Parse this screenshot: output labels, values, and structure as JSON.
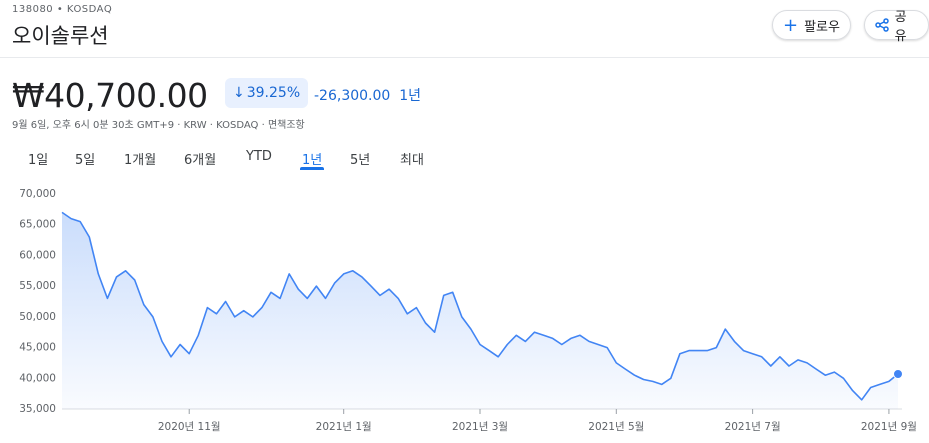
{
  "header": {
    "ticker": "138080 • KOSDAQ",
    "name": "오이솔루션",
    "price": "₩40,700.00",
    "change_percent": "39.25%",
    "change": "-26,300.00",
    "change_period": "1년",
    "meta": "9월 6일, 오후 6시 0분 30초 GMT+9 · KRW · KOSDAQ · 면책조항"
  },
  "buttons": {
    "follow": "팔로우",
    "share": "공유"
  },
  "tabs": {
    "items": [
      "1일",
      "5일",
      "1개월",
      "6개월",
      "YTD",
      "1년",
      "5년",
      "최대"
    ],
    "active": 5
  },
  "chart_data": {
    "type": "line",
    "color": "#4285f4",
    "categories": [
      null,
      null,
      null,
      null,
      null,
      null,
      null,
      null,
      null,
      null,
      null,
      null,
      null,
      null,
      "2020년 11월",
      null,
      null,
      null,
      null,
      null,
      null,
      null,
      null,
      null,
      null,
      null,
      null,
      null,
      null,
      null,
      null,
      "2021년 1월",
      null,
      null,
      null,
      null,
      null,
      null,
      null,
      null,
      null,
      null,
      null,
      null,
      null,
      null,
      "2021년 3월",
      null,
      null,
      null,
      null,
      null,
      null,
      null,
      null,
      null,
      null,
      null,
      null,
      null,
      null,
      "2021년 5월",
      null,
      null,
      null,
      null,
      null,
      null,
      null,
      null,
      null,
      null,
      null,
      null,
      null,
      null,
      "2021년 7월",
      null,
      null,
      null,
      null,
      null,
      null,
      null,
      null,
      null,
      null,
      null,
      null,
      null,
      null,
      "2021년 9월",
      null
    ],
    "values": [
      67000,
      66000,
      65500,
      63000,
      57000,
      53000,
      56500,
      57500,
      56000,
      52000,
      50000,
      46000,
      43500,
      45500,
      44000,
      47000,
      51500,
      50500,
      52500,
      50000,
      51000,
      50000,
      51500,
      54000,
      53000,
      57000,
      54500,
      53000,
      55000,
      53000,
      55500,
      57000,
      57500,
      56500,
      55000,
      53500,
      54500,
      53000,
      50500,
      51500,
      49000,
      47500,
      53500,
      54000,
      50000,
      48000,
      45500,
      44500,
      43500,
      45500,
      47000,
      46000,
      47500,
      47000,
      46500,
      45500,
      46500,
      47000,
      46000,
      45500,
      45000,
      42500,
      41500,
      40500,
      39800,
      39500,
      39000,
      40000,
      44000,
      44500,
      44500,
      44500,
      45000,
      48000,
      46000,
      44500,
      44000,
      43500,
      42000,
      43500,
      42000,
      43000,
      42500,
      41500,
      40500,
      41000,
      40000,
      38000,
      36500,
      38500,
      39000,
      39500,
      40700
    ],
    "ylim": [
      35000,
      70000
    ],
    "yticks": [
      {
        "value": 35000,
        "label": "35,000"
      },
      {
        "value": 40000,
        "label": "40,000"
      },
      {
        "value": 45000,
        "label": "45,000"
      },
      {
        "value": 50000,
        "label": "50,000"
      },
      {
        "value": 55000,
        "label": "55,000"
      },
      {
        "value": 60000,
        "label": "60,000"
      },
      {
        "value": 65000,
        "label": "65,000"
      },
      {
        "value": 70000,
        "label": "70,000"
      }
    ],
    "grid": false
  }
}
